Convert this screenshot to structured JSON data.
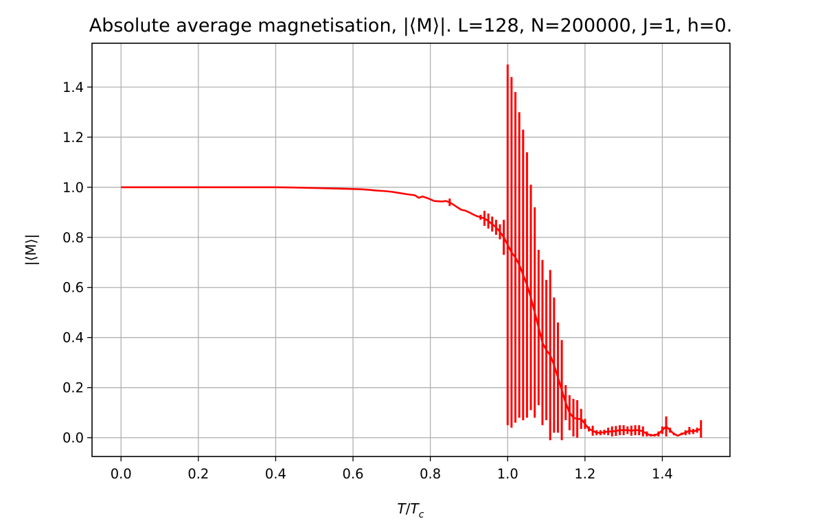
{
  "chart_data": {
    "type": "line",
    "title": "Absolute average magnetisation, |⟨M⟩|. L=128, N=200000, J=1, h=0.",
    "xlabel": {
      "main": "T",
      "sep": "/",
      "base": "T",
      "sub": "c"
    },
    "ylabel": "|⟨M⟩|",
    "xlim": [
      -0.075,
      1.575
    ],
    "ylim": [
      -0.075,
      1.575
    ],
    "x_ticks": [
      0.0,
      0.2,
      0.4,
      0.6,
      0.8,
      1.0,
      1.2,
      1.4
    ],
    "x_tick_labels": [
      "0.0",
      "0.2",
      "0.4",
      "0.6",
      "0.8",
      "1.0",
      "1.2",
      "1.4"
    ],
    "y_ticks": [
      0.0,
      0.2,
      0.4,
      0.6,
      0.8,
      1.0,
      1.2,
      1.4
    ],
    "y_tick_labels": [
      "0.0",
      "0.2",
      "0.4",
      "0.6",
      "0.8",
      "1.0",
      "1.2",
      "1.4"
    ],
    "grid": true,
    "legend": "none",
    "colors": {
      "series": "#ff0000",
      "grid": "#b0b0b0",
      "axes": "#000000"
    },
    "series": [
      {
        "x": [
          0.0,
          0.1,
          0.2,
          0.3,
          0.4,
          0.45,
          0.5,
          0.55,
          0.6,
          0.62,
          0.64,
          0.66,
          0.68,
          0.7,
          0.72,
          0.74,
          0.76,
          0.77,
          0.78,
          0.79,
          0.8,
          0.81,
          0.82,
          0.83,
          0.84,
          0.85,
          0.86,
          0.87,
          0.88,
          0.89,
          0.9,
          0.91,
          0.92,
          0.93,
          0.94,
          0.95,
          0.96,
          0.97,
          0.98,
          0.99,
          1.0,
          1.01,
          1.02,
          1.03,
          1.04,
          1.05,
          1.06,
          1.07,
          1.08,
          1.09,
          1.1,
          1.11,
          1.12,
          1.13,
          1.14,
          1.15,
          1.16,
          1.17,
          1.18,
          1.19,
          1.2,
          1.21,
          1.22,
          1.23,
          1.24,
          1.25,
          1.26,
          1.27,
          1.28,
          1.29,
          1.3,
          1.31,
          1.32,
          1.33,
          1.34,
          1.35,
          1.36,
          1.37,
          1.38,
          1.39,
          1.4,
          1.41,
          1.42,
          1.43,
          1.44,
          1.45,
          1.46,
          1.47,
          1.48,
          1.49,
          1.5
        ],
        "y": [
          1.0,
          1.0,
          1.0,
          1.0,
          1.0,
          0.999,
          0.997,
          0.995,
          0.993,
          0.992,
          0.99,
          0.987,
          0.985,
          0.982,
          0.977,
          0.972,
          0.968,
          0.958,
          0.963,
          0.958,
          0.952,
          0.945,
          0.944,
          0.943,
          0.945,
          0.94,
          0.93,
          0.92,
          0.91,
          0.907,
          0.9,
          0.892,
          0.885,
          0.88,
          0.876,
          0.865,
          0.853,
          0.84,
          0.822,
          0.8,
          0.77,
          0.74,
          0.72,
          0.69,
          0.65,
          0.61,
          0.56,
          0.5,
          0.44,
          0.38,
          0.35,
          0.33,
          0.29,
          0.24,
          0.19,
          0.14,
          0.1,
          0.08,
          0.075,
          0.075,
          0.055,
          0.035,
          0.028,
          0.02,
          0.02,
          0.022,
          0.025,
          0.025,
          0.027,
          0.03,
          0.03,
          0.03,
          0.028,
          0.03,
          0.03,
          0.025,
          0.015,
          0.01,
          0.01,
          0.015,
          0.03,
          0.045,
          0.03,
          0.015,
          0.008,
          0.015,
          0.02,
          0.028,
          0.025,
          0.03,
          0.035
        ],
        "err": [
          0,
          0,
          0,
          0,
          0,
          0,
          0,
          0,
          0,
          0,
          0,
          0,
          0,
          0,
          0,
          0,
          0,
          0,
          0,
          0,
          0,
          0,
          0,
          0,
          0,
          0.015,
          0,
          0,
          0,
          0,
          0,
          0,
          0,
          0.01,
          0.03,
          0.03,
          0.03,
          0.03,
          0.03,
          0.07,
          0.72,
          0.7,
          0.66,
          0.61,
          0.58,
          0.53,
          0.45,
          0.42,
          0.31,
          0.33,
          0.28,
          0.34,
          0.27,
          0.22,
          0.2,
          0.07,
          0.07,
          0.075,
          0.075,
          0.04,
          0.02,
          0.01,
          0.02,
          0.01,
          0.01,
          0.01,
          0.015,
          0.02,
          0.02,
          0.02,
          0.02,
          0.015,
          0.02,
          0.02,
          0.02,
          0.02,
          0.01,
          0.005,
          0.005,
          0.01,
          0.015,
          0.04,
          0.01,
          0.005,
          0.003,
          0.005,
          0.01,
          0.015,
          0.01,
          0.01,
          0.035
        ]
      }
    ]
  }
}
